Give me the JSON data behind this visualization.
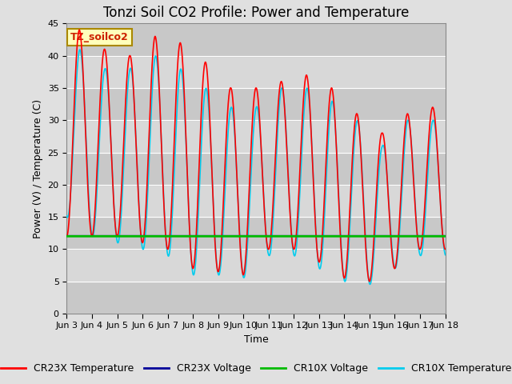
{
  "title": "Tonzi Soil CO2 Profile: Power and Temperature",
  "xlabel": "Time",
  "ylabel": "Power (V) / Temperature (C)",
  "ylim": [
    0,
    45
  ],
  "annotation": "TZ_soilco2",
  "x_tick_labels": [
    "Jun 3",
    "Jun 4",
    "Jun 5",
    "Jun 6",
    "Jun 7",
    "Jun 8",
    "Jun 9",
    "Jun 10",
    "Jun 11",
    "Jun 12",
    "Jun 13",
    "Jun 14",
    "Jun 15",
    "Jun 16",
    "Jun 17",
    "Jun 18"
  ],
  "cr23x_temp_color": "#ff0000",
  "cr23x_volt_color": "#000099",
  "cr10x_volt_color": "#00bb00",
  "cr10x_temp_color": "#00ccee",
  "background_color": "#e0e0e0",
  "plot_bg_color": "#d3d3d3",
  "grid_color": "#ffffff",
  "legend_labels": [
    "CR23X Temperature",
    "CR23X Voltage",
    "CR10X Voltage",
    "CR10X Temperature"
  ],
  "cr10x_volt_value": 12.0,
  "title_fontsize": 12,
  "axis_label_fontsize": 9,
  "tick_fontsize": 8,
  "legend_fontsize": 9
}
